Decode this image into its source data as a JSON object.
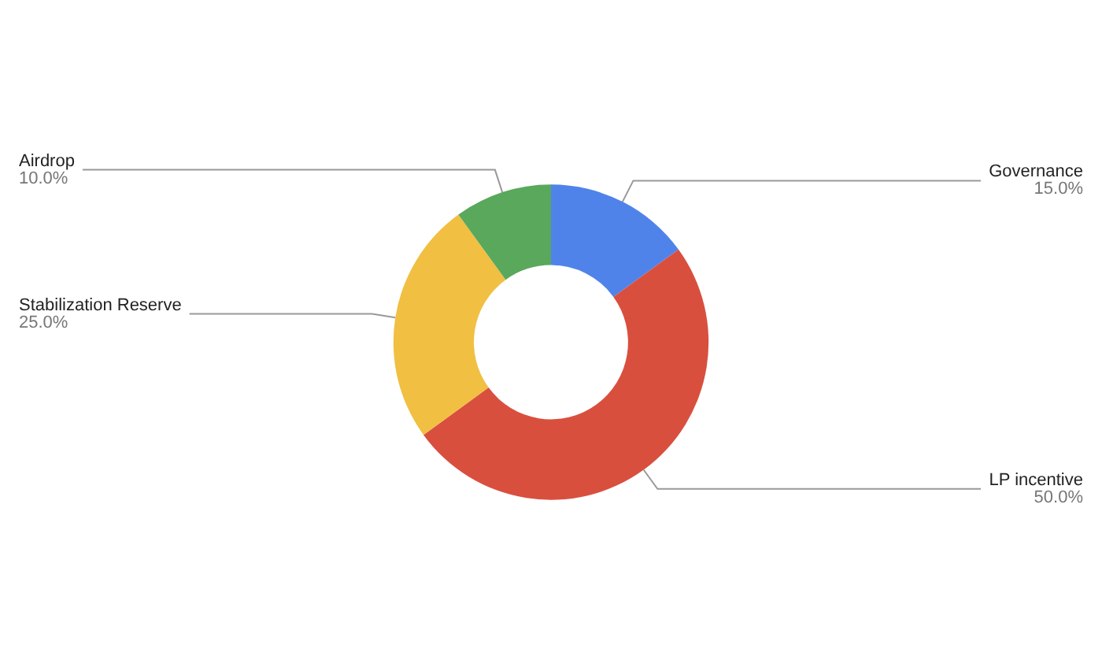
{
  "chart_data": {
    "type": "donut",
    "categories": [
      "Governance",
      "LP incentive",
      "Stabilization Reserve",
      "Airdrop"
    ],
    "values": [
      15,
      50,
      25,
      10
    ],
    "colors": [
      "#5083ea",
      "#d94f3e",
      "#f1bf41",
      "#59a85c"
    ],
    "value_labels": [
      "15.0%",
      "50.0%",
      "25.0%",
      "10.0%"
    ],
    "legend": false
  }
}
